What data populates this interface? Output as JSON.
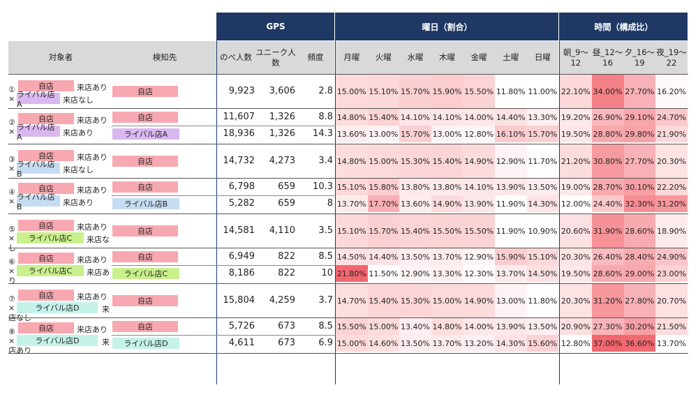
{
  "header": {
    "gps": "GPS",
    "weekday": "曜日（割合）",
    "time": "時間（構成比）"
  },
  "subheader": {
    "target": "対象者",
    "detect": "検知先",
    "total": "のべ人数",
    "unique": "ユニーク人数",
    "freq": "頻度",
    "days": [
      "月曜",
      "火曜",
      "水曜",
      "木曜",
      "金曜",
      "土曜",
      "日曜"
    ],
    "times": [
      "朝_9～12",
      "昼_12～16",
      "夕_16～19",
      "夜_19～22"
    ]
  },
  "colors": {
    "navy": "#1f3864",
    "self_tag": "#f8a8b0",
    "rivalA_tag": "#d9b8f0",
    "rivalB_tag": "#c6dcf2",
    "rivalC_tag": "#c9f08c",
    "rivalD_tag": "#c4f2ea",
    "heat_low": "#fdf0f0",
    "heat_high": "#f2676f"
  },
  "groups": [
    {
      "label": {
        "num": "①",
        "self": "自店",
        "t1": "来店あり",
        "rival": "ライバル店A",
        "rival_color": "#d9b8f0",
        "t2": "来店なし",
        "layout": "inline"
      },
      "rows": [
        {
          "detect": "自店",
          "detect_color": "#f8a8b0",
          "total": "9,923",
          "unique": "3,606",
          "freq": "2.8",
          "days": [
            "15.00%",
            "15.10%",
            "15.70%",
            "15.90%",
            "15.50%",
            "11.80%",
            "11.00%"
          ],
          "times": [
            "22.10%",
            "34.00%",
            "27.70%",
            "16.20%"
          ]
        }
      ]
    },
    {
      "label": {
        "num": "②",
        "self": "自店",
        "t1": "来店あり",
        "rival": "ライバル店A",
        "rival_color": "#d9b8f0",
        "t2": "来店あり",
        "layout": "inline"
      },
      "rows": [
        {
          "detect": "自店",
          "detect_color": "#f8a8b0",
          "total": "11,607",
          "unique": "1,326",
          "freq": "8.8",
          "days": [
            "14.80%",
            "15.40%",
            "14.10%",
            "14.10%",
            "14.00%",
            "14.40%",
            "13.30%"
          ],
          "times": [
            "19.20%",
            "26.90%",
            "29.10%",
            "24.70%"
          ]
        },
        {
          "detect": "ライバル店A",
          "detect_color": "#d9b8f0",
          "total": "18,936",
          "unique": "1,326",
          "freq": "14.3",
          "days": [
            "13.60%",
            "13.00%",
            "15.70%",
            "13.00%",
            "12.80%",
            "16.10%",
            "15.70%"
          ],
          "times": [
            "19.50%",
            "28.80%",
            "29.80%",
            "21.90%"
          ]
        }
      ]
    },
    {
      "label": {
        "num": "③",
        "self": "自店",
        "t1": "来店あり",
        "rival": "ライバル店B",
        "rival_color": "#c6dcf2",
        "t2": "来店なし",
        "layout": "inline"
      },
      "rows": [
        {
          "detect": "自店",
          "detect_color": "#f8a8b0",
          "total": "14,732",
          "unique": "4,273",
          "freq": "3.4",
          "days": [
            "14.80%",
            "15.00%",
            "15.30%",
            "15.40%",
            "14.90%",
            "12.90%",
            "11.70%"
          ],
          "times": [
            "21.20%",
            "30.80%",
            "27.70%",
            "20.30%"
          ]
        }
      ]
    },
    {
      "label": {
        "num": "④",
        "self": "自店",
        "t1": "来店あり",
        "rival": "ライバル店B",
        "rival_color": "#c6dcf2",
        "t2": "来店あり",
        "layout": "inline"
      },
      "rows": [
        {
          "detect": "自店",
          "detect_color": "#f8a8b0",
          "total": "6,798",
          "unique": "659",
          "freq": "10.3",
          "days": [
            "15.10%",
            "15.80%",
            "13.80%",
            "13.80%",
            "14.10%",
            "13.90%",
            "13.50%"
          ],
          "times": [
            "19.00%",
            "28.70%",
            "30.10%",
            "22.20%"
          ]
        },
        {
          "detect": "ライバル店B",
          "detect_color": "#c6dcf2",
          "total": "5,282",
          "unique": "659",
          "freq": "8",
          "days": [
            "13.70%",
            "17.70%",
            "13.60%",
            "14.90%",
            "13.90%",
            "11.90%",
            "14.30%"
          ],
          "times": [
            "12.00%",
            "24.40%",
            "32.30%",
            "31.20%"
          ]
        }
      ]
    },
    {
      "label": {
        "num": "⑤",
        "self": "自店",
        "t1": "来店あり",
        "rival": "ライバル店C",
        "rival_color": "#c9f08c",
        "t2a": "来店な",
        "t2b": "し",
        "layout": "wrap"
      },
      "rows": [
        {
          "detect": "自店",
          "detect_color": "#f8a8b0",
          "total": "14,581",
          "unique": "4,110",
          "freq": "3.5",
          "days": [
            "15.10%",
            "15.70%",
            "15.40%",
            "15.50%",
            "15.50%",
            "11.90%",
            "10.90%"
          ],
          "times": [
            "20.60%",
            "31.90%",
            "28.60%",
            "18.90%"
          ]
        }
      ]
    },
    {
      "label": {
        "num": "⑥",
        "self": "自店",
        "t1": "来店あり",
        "rival": "ライバル店C",
        "rival_color": "#c9f08c",
        "t2a": "来店あ",
        "t2b": "り",
        "layout": "wrap"
      },
      "rows": [
        {
          "detect": "自店",
          "detect_color": "#f8a8b0",
          "total": "6,949",
          "unique": "822",
          "freq": "8.5",
          "days": [
            "14.50%",
            "14.40%",
            "13.50%",
            "13.70%",
            "12.90%",
            "15.90%",
            "15.10%"
          ],
          "times": [
            "20.30%",
            "26.40%",
            "28.40%",
            "24.90%"
          ]
        },
        {
          "detect": "ライバル店C",
          "detect_color": "#c9f08c",
          "total": "8,186",
          "unique": "822",
          "freq": "10",
          "days": [
            "21.80%",
            "11.50%",
            "12.90%",
            "13.30%",
            "12.30%",
            "13.70%",
            "14.50%"
          ],
          "times": [
            "19.50%",
            "28.60%",
            "29.00%",
            "23.00%"
          ]
        }
      ]
    },
    {
      "label": {
        "num": "⑦",
        "self": "自店",
        "t1": "来店あり",
        "rival": "ライバル店D",
        "rival_color": "#c4f2ea",
        "t2a": "来",
        "t2b": "店なし",
        "layout": "wrap2"
      },
      "rows": [
        {
          "detect": "自店",
          "detect_color": "#f8a8b0",
          "total": "15,804",
          "unique": "4,259",
          "freq": "3.7",
          "days": [
            "14.70%",
            "15.40%",
            "15.30%",
            "15.00%",
            "14.90%",
            "13.00%",
            "11.80%"
          ],
          "times": [
            "20.30%",
            "31.20%",
            "27.80%",
            "20.70%"
          ]
        }
      ]
    },
    {
      "label": {
        "num": "⑧",
        "self": "自店",
        "t1": "来店あり",
        "rival": "ライバル店D",
        "rival_color": "#c4f2ea",
        "t2a": "来",
        "t2b": "店あり",
        "layout": "wrap2"
      },
      "rows": [
        {
          "detect": "自店",
          "detect_color": "#f8a8b0",
          "total": "5,726",
          "unique": "673",
          "freq": "8.5",
          "days": [
            "15.50%",
            "15.00%",
            "13.40%",
            "14.80%",
            "14.00%",
            "13.90%",
            "13.50%"
          ],
          "times": [
            "20.90%",
            "27.30%",
            "30.20%",
            "21.50%"
          ]
        },
        {
          "detect": "ライバル店D",
          "detect_color": "#c4f2ea",
          "total": "4,611",
          "unique": "673",
          "freq": "6.9",
          "days": [
            "15.00%",
            "14.60%",
            "13.50%",
            "13.70%",
            "13.20%",
            "14.30%",
            "15.60%"
          ],
          "times": [
            "12.80%",
            "37.00%",
            "36.60%",
            "13.70%"
          ]
        }
      ]
    }
  ]
}
